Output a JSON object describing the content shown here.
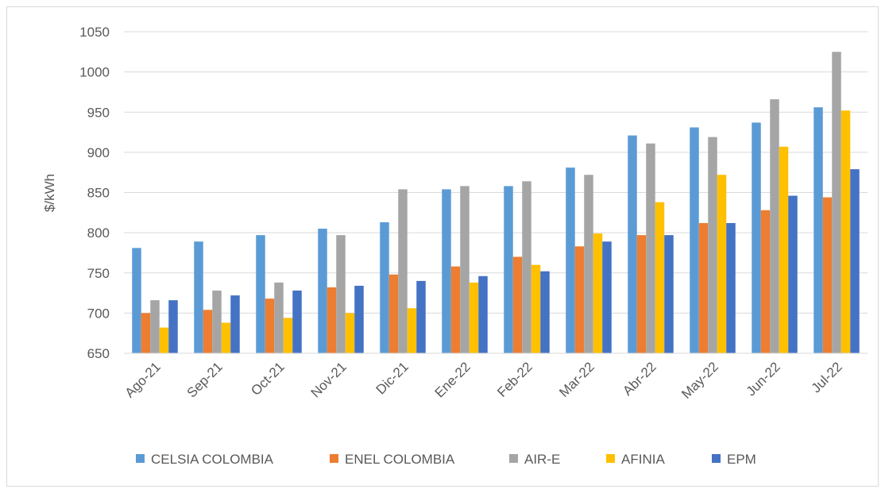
{
  "chart_data": {
    "type": "bar",
    "title": "",
    "xlabel": "",
    "ylabel": "$/kWh",
    "ylim": [
      650,
      1050
    ],
    "yticks": [
      650,
      700,
      750,
      800,
      850,
      900,
      950,
      1000,
      1050
    ],
    "grid": true,
    "legend_position": "bottom",
    "categories": [
      "Ago-21",
      "Sep-21",
      "Oct-21",
      "Nov-21",
      "Dic-21",
      "Ene-22",
      "Feb-22",
      "Mar-22",
      "Abr-22",
      "May-22",
      "Jun-22",
      "Jul-22"
    ],
    "series": [
      {
        "name": "CELSIA COLOMBIA",
        "color": "#5b9bd5",
        "values": [
          781,
          789,
          797,
          805,
          813,
          854,
          858,
          881,
          921,
          931,
          937,
          956
        ]
      },
      {
        "name": "ENEL COLOMBIA",
        "color": "#ed7d31",
        "values": [
          700,
          704,
          718,
          732,
          748,
          758,
          770,
          783,
          797,
          812,
          828,
          844
        ]
      },
      {
        "name": "AIR-E",
        "color": "#a5a5a5",
        "values": [
          716,
          728,
          738,
          797,
          854,
          858,
          864,
          872,
          911,
          919,
          966,
          1025
        ]
      },
      {
        "name": "AFINIA",
        "color": "#ffc000",
        "values": [
          682,
          688,
          694,
          700,
          706,
          738,
          760,
          799,
          838,
          872,
          907,
          952
        ]
      },
      {
        "name": "EPM",
        "color": "#4472c4",
        "values": [
          716,
          722,
          728,
          734,
          740,
          746,
          752,
          789,
          797,
          812,
          846,
          879
        ]
      }
    ]
  }
}
